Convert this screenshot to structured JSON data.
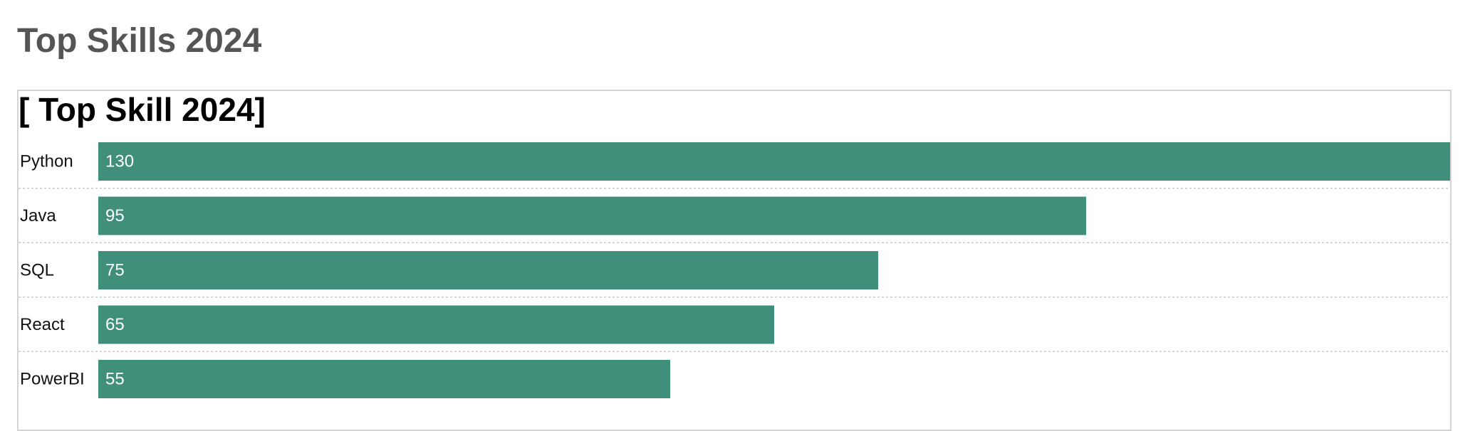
{
  "page": {
    "title": "Top Skills 2024"
  },
  "chart_data": {
    "type": "bar",
    "orientation": "horizontal",
    "title": "[ Top Skill 2024]",
    "categories": [
      "Python",
      "Java",
      "SQL",
      "React",
      "PowerBI"
    ],
    "values": [
      130,
      95,
      75,
      65,
      55
    ],
    "xlabel": "",
    "ylabel": "",
    "xlim": [
      0,
      130
    ],
    "data_labels": "inside-start",
    "grid": false,
    "row_dividers": "dotted",
    "bar_color": "#3f8f7a"
  }
}
